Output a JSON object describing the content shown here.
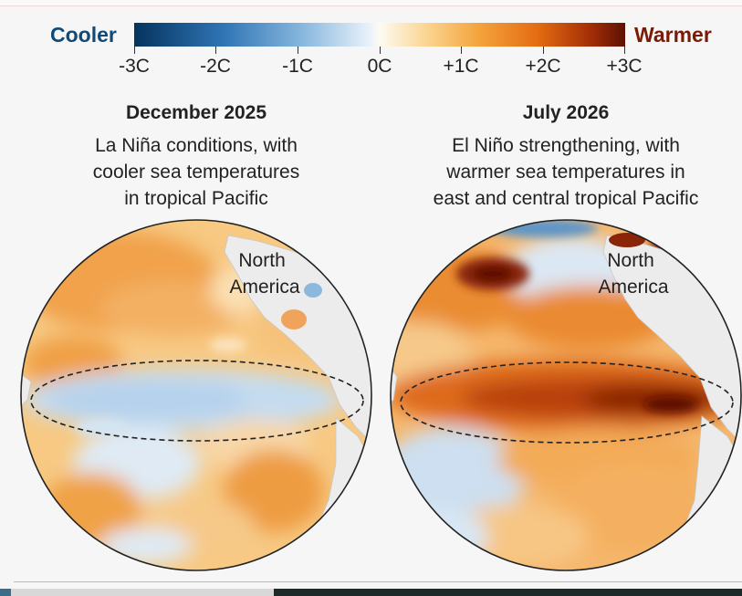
{
  "legend": {
    "cooler_label": "Cooler",
    "warmer_label": "Warmer",
    "ticks": [
      "-3C",
      "-2C",
      "-1C",
      "0C",
      "+1C",
      "+2C",
      "+3C"
    ],
    "colors": {
      "coldest": "#05335e",
      "neutral": "#fdfbf1",
      "warmest": "#5e1004",
      "cooler_text": "#0f4a78",
      "warmer_text": "#7a1a05"
    }
  },
  "panels": [
    {
      "date": "December 2025",
      "caption_lines": [
        "La Niña conditions, with",
        "cooler sea temperatures",
        "in tropical Pacific"
      ],
      "place_label_lines": [
        "North",
        "America"
      ]
    },
    {
      "date": "July 2026",
      "caption_lines": [
        "El Niño strengthening, with",
        "warmer sea temperatures in",
        "east and central tropical Pacific"
      ],
      "place_label_lines": [
        "North",
        "America"
      ]
    }
  ]
}
